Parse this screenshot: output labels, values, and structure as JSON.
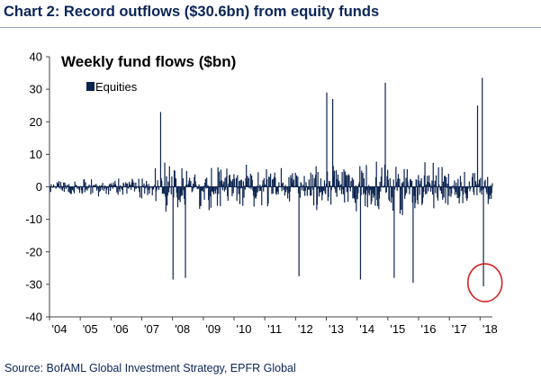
{
  "header": {
    "title": "Chart 2: Record outflows ($30.6bn) from equity funds"
  },
  "footer": {
    "source": "Source: BofAML Global Investment Strategy, EPFR Global"
  },
  "colors": {
    "bars": "#0d2450",
    "axis": "#444444",
    "text": "#000000",
    "header_text": "#0b2559",
    "highlight_circle": "#d22222"
  },
  "chart_data": {
    "type": "bar",
    "title": "Weekly fund flows ($bn)",
    "xlabel": "",
    "ylabel": "",
    "ylim": [
      -40,
      40
    ],
    "yticks": [
      -40,
      -30,
      -20,
      -10,
      0,
      10,
      20,
      30,
      40
    ],
    "x_tick_labels": [
      "'04",
      "'05",
      "'06",
      "'07",
      "'08",
      "'09",
      "'10",
      "'11",
      "'12",
      "'13",
      "'14",
      "'15",
      "'16",
      "'17",
      "'18"
    ],
    "x_range_years": [
      2004.0,
      2018.4
    ],
    "legend": {
      "entries": [
        "Equities"
      ],
      "position": "top-left"
    },
    "annotation": {
      "type": "circle",
      "label": "Record outflow",
      "x_year": 2018.1,
      "y": -30.6
    },
    "series": [
      {
        "name": "Equities",
        "frequency": "weekly",
        "notable_points": [
          {
            "x_year": 2007.6,
            "y": 23
          },
          {
            "x_year": 2008.0,
            "y": -28.5
          },
          {
            "x_year": 2008.4,
            "y": -28
          },
          {
            "x_year": 2012.1,
            "y": -27.5
          },
          {
            "x_year": 2013.0,
            "y": 29
          },
          {
            "x_year": 2013.2,
            "y": 27
          },
          {
            "x_year": 2014.1,
            "y": -28.5
          },
          {
            "x_year": 2014.9,
            "y": 32
          },
          {
            "x_year": 2015.2,
            "y": -28
          },
          {
            "x_year": 2015.8,
            "y": -29.5
          },
          {
            "x_year": 2017.9,
            "y": 25
          },
          {
            "x_year": 2018.05,
            "y": 33.5
          },
          {
            "x_year": 2018.1,
            "y": -30.6
          }
        ]
      }
    ]
  }
}
